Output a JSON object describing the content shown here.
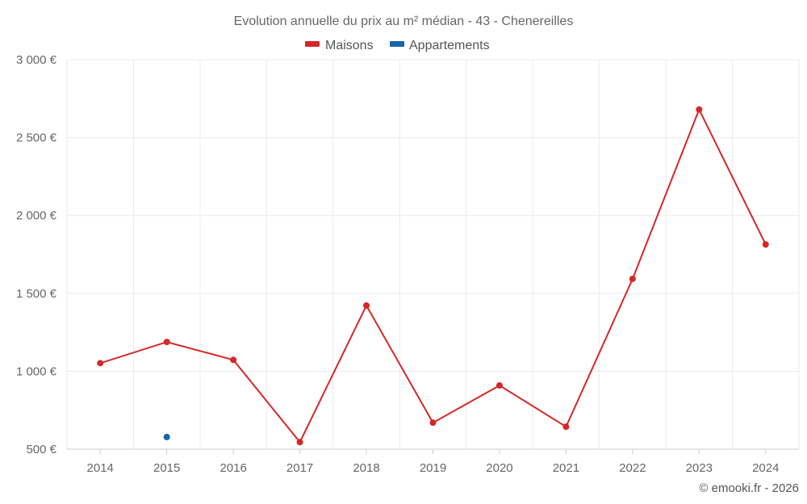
{
  "chart_data": {
    "type": "line",
    "title": "Evolution annuelle du prix au m² médian - 43 - Chenereilles",
    "categories": [
      "2014",
      "2015",
      "2016",
      "2017",
      "2018",
      "2019",
      "2020",
      "2021",
      "2022",
      "2023",
      "2024"
    ],
    "series": [
      {
        "name": "Maisons",
        "color": "#d62728",
        "values": [
          1052,
          1188,
          1073,
          545,
          1422,
          670,
          909,
          644,
          1593,
          2680,
          1814
        ]
      },
      {
        "name": "Appartements",
        "color": "#1565a8",
        "values": [
          null,
          578,
          null,
          null,
          null,
          null,
          null,
          null,
          null,
          null,
          null
        ]
      }
    ],
    "ylim": [
      500,
      3000
    ],
    "yticks": [
      500,
      1000,
      1500,
      2000,
      2500,
      3000
    ],
    "ytick_labels": [
      "500 €",
      "1 000 €",
      "1 500 €",
      "2 000 €",
      "2 500 €",
      "3 000 €"
    ],
    "xlabel": "",
    "ylabel": "",
    "legend_position": "top-center",
    "grid": true
  },
  "credit": "© emooki.fr - 2026"
}
